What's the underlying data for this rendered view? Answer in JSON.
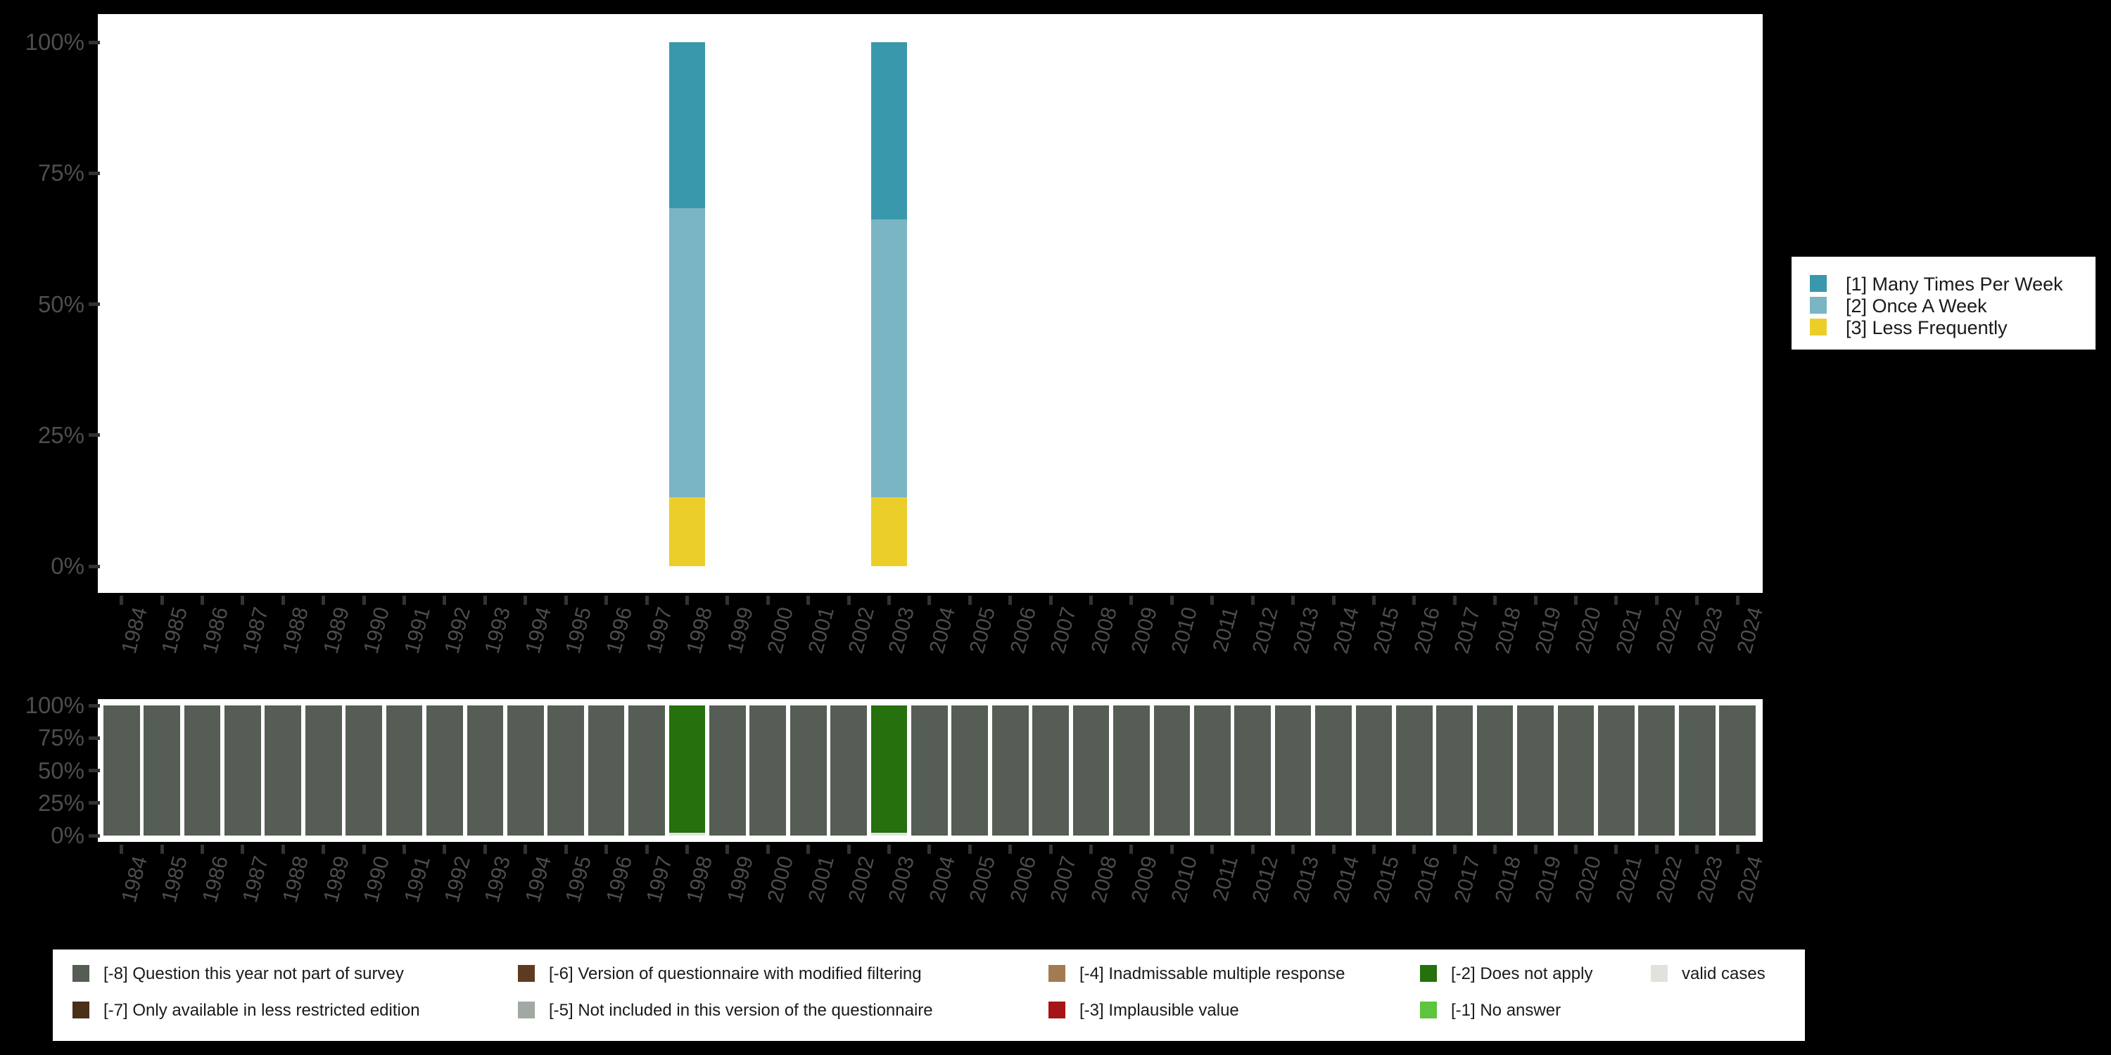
{
  "colors": {
    "background": "#000000",
    "plot_background": "#ffffff",
    "axis_text": "#4d4d4d",
    "tick": "#333333",
    "legend_text": "#1a1a1a",
    "legend_background": "#ffffff"
  },
  "palette": {
    "1": "#3a98ad",
    "2": "#7ab5c4",
    "3": "#ecce2b",
    "-8": "#555d55",
    "-7": "#483019",
    "-6": "#5e3b20",
    "-5": "#a2a9a2",
    "-4": "#a37b52",
    "-3": "#a51416",
    "-2": "#26700e",
    "-1": "#5cc43d",
    "valid": "#dfe3dc"
  },
  "chart_data": [
    {
      "id": "values",
      "type": "bar",
      "stacked": true,
      "title": "",
      "xlabel": "",
      "ylabel": "",
      "ylim": [
        0,
        100
      ],
      "grid": false,
      "y_tick_pcts": [
        100,
        75,
        50,
        25,
        0
      ],
      "y_tick_labels": [
        "100%",
        "75%",
        "50%",
        "25%",
        "0%"
      ],
      "categories": [
        "1984",
        "1985",
        "1986",
        "1987",
        "1988",
        "1989",
        "1990",
        "1991",
        "1992",
        "1993",
        "1994",
        "1995",
        "1996",
        "1997",
        "1998",
        "1999",
        "2000",
        "2001",
        "2002",
        "2003",
        "2004",
        "2005",
        "2006",
        "2007",
        "2008",
        "2009",
        "2010",
        "2011",
        "2012",
        "2013",
        "2014",
        "2015",
        "2016",
        "2017",
        "2018",
        "2019",
        "2020",
        "2021",
        "2022",
        "2023",
        "2024"
      ],
      "series": [
        {
          "code": "1",
          "name": "[1] Many Times Per Week",
          "values_by_year": {
            "1998": 31.7,
            "2003": 33.8
          }
        },
        {
          "code": "2",
          "name": "[2] Once A Week",
          "values_by_year": {
            "1998": 55.1,
            "2003": 53.0
          }
        },
        {
          "code": "3",
          "name": "[3] Less Frequently",
          "values_by_year": {
            "1998": 13.2,
            "2003": 13.2
          }
        }
      ],
      "legend": {
        "position": "right",
        "entries": [
          {
            "code": "1",
            "label": "[1] Many Times Per Week"
          },
          {
            "code": "2",
            "label": "[2] Once A Week"
          },
          {
            "code": "3",
            "label": "[3] Less Frequently"
          }
        ]
      }
    },
    {
      "id": "missing",
      "type": "bar",
      "stacked": true,
      "title": "",
      "xlabel": "",
      "ylabel": "",
      "ylim": [
        0,
        100
      ],
      "grid": false,
      "y_tick_pcts": [
        100,
        75,
        50,
        25,
        0
      ],
      "y_tick_labels": [
        "100%",
        "75%",
        "50%",
        "25%",
        "0%"
      ],
      "categories": [
        "1984",
        "1985",
        "1986",
        "1987",
        "1988",
        "1989",
        "1990",
        "1991",
        "1992",
        "1993",
        "1994",
        "1995",
        "1996",
        "1997",
        "1998",
        "1999",
        "2000",
        "2001",
        "2002",
        "2003",
        "2004",
        "2005",
        "2006",
        "2007",
        "2008",
        "2009",
        "2010",
        "2011",
        "2012",
        "2013",
        "2014",
        "2015",
        "2016",
        "2017",
        "2018",
        "2019",
        "2020",
        "2021",
        "2022",
        "2023",
        "2024"
      ],
      "series": [
        {
          "code": "-8",
          "name": "[-8] Question this year not part of survey",
          "default": 100,
          "values_by_year": {
            "1998": 0,
            "2003": 0
          }
        },
        {
          "code": "-2",
          "name": "[-2] Does not apply",
          "values_by_year": {
            "1998": 97.8,
            "2003": 97.8
          }
        },
        {
          "code": "valid",
          "name": "valid cases",
          "values_by_year": {
            "1998": 2.2,
            "2003": 2.2
          }
        }
      ],
      "legend": {
        "position": "bottom",
        "entries": [
          {
            "code": "-8",
            "label": "[-8] Question this year not part of survey",
            "col": 0,
            "row": 0
          },
          {
            "code": "-7",
            "label": "[-7] Only available in less restricted edition",
            "col": 0,
            "row": 1
          },
          {
            "code": "-6",
            "label": "[-6] Version of questionnaire with modified filtering",
            "col": 1,
            "row": 0
          },
          {
            "code": "-5",
            "label": "[-5] Not included in this version of the questionnaire",
            "col": 1,
            "row": 1
          },
          {
            "code": "-4",
            "label": "[-4] Inadmissable multiple response",
            "col": 2,
            "row": 0
          },
          {
            "code": "-3",
            "label": "[-3] Implausible value",
            "col": 2,
            "row": 1
          },
          {
            "code": "-2",
            "label": "[-2] Does not apply",
            "col": 3,
            "row": 0
          },
          {
            "code": "-1",
            "label": "[-1] No answer",
            "col": 3,
            "row": 1
          },
          {
            "code": "valid",
            "label": "valid cases",
            "col": 4,
            "row": 0
          }
        ]
      }
    }
  ]
}
